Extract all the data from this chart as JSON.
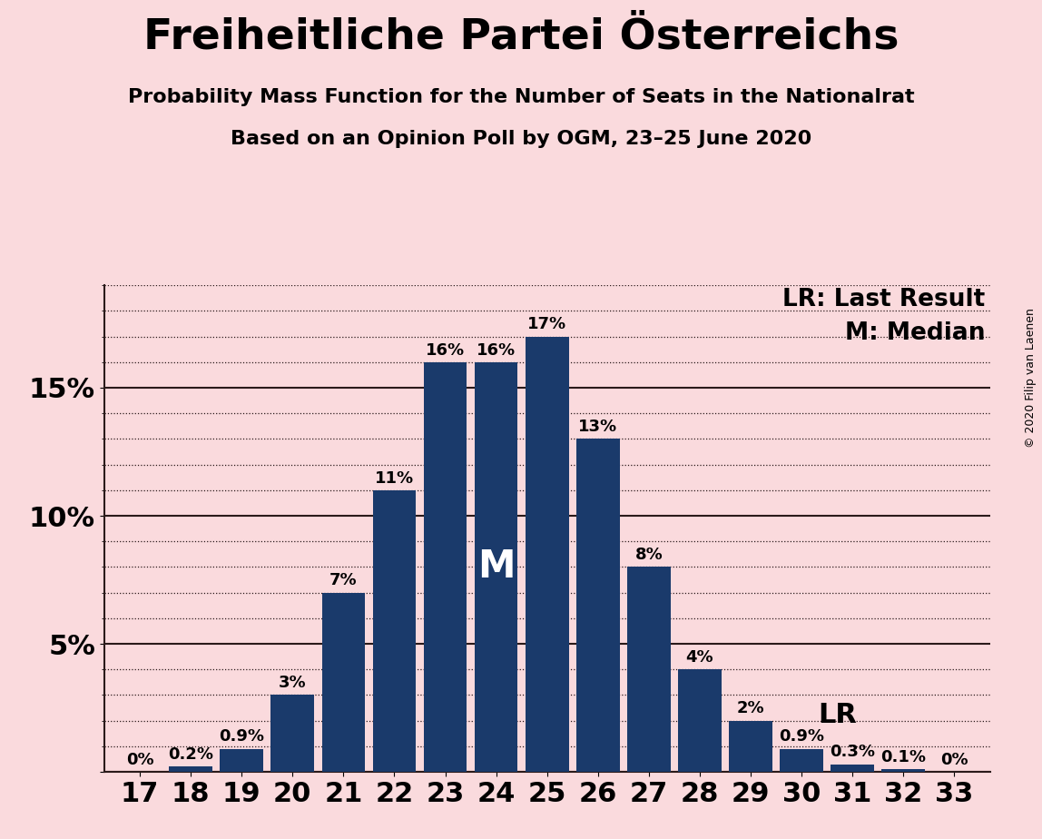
{
  "title": "Freiheitliche Partei Österreichs",
  "subtitle1": "Probability Mass Function for the Number of Seats in the Nationalrat",
  "subtitle2": "Based on an Opinion Poll by OGM, 23–25 June 2020",
  "copyright": "© 2020 Filip van Laenen",
  "categories": [
    17,
    18,
    19,
    20,
    21,
    22,
    23,
    24,
    25,
    26,
    27,
    28,
    29,
    30,
    31,
    32,
    33
  ],
  "values": [
    0.0,
    0.2,
    0.9,
    3.0,
    7.0,
    11.0,
    16.0,
    16.0,
    17.0,
    13.0,
    8.0,
    4.0,
    2.0,
    0.9,
    0.3,
    0.1,
    0.0
  ],
  "labels": [
    "0%",
    "0.2%",
    "0.9%",
    "3%",
    "7%",
    "11%",
    "16%",
    "16%",
    "17%",
    "13%",
    "8%",
    "4%",
    "2%",
    "0.9%",
    "0.3%",
    "0.1%",
    "0%"
  ],
  "bar_color": "#1a3a6b",
  "background_color": "#fadadd",
  "median_seat": 24,
  "last_result_seat": 30,
  "legend_lr": "LR: Last Result",
  "legend_m": "M: Median",
  "ylim_max": 19,
  "yticks": [
    0,
    5,
    10,
    15
  ],
  "ytick_labels": [
    "",
    "5%",
    "10%",
    "15%"
  ],
  "title_fontsize": 34,
  "subtitle_fontsize": 16,
  "bar_label_fontsize": 13,
  "axis_tick_fontsize": 22,
  "legend_fontsize": 19,
  "median_fontsize": 30,
  "lr_label_fontsize": 22
}
